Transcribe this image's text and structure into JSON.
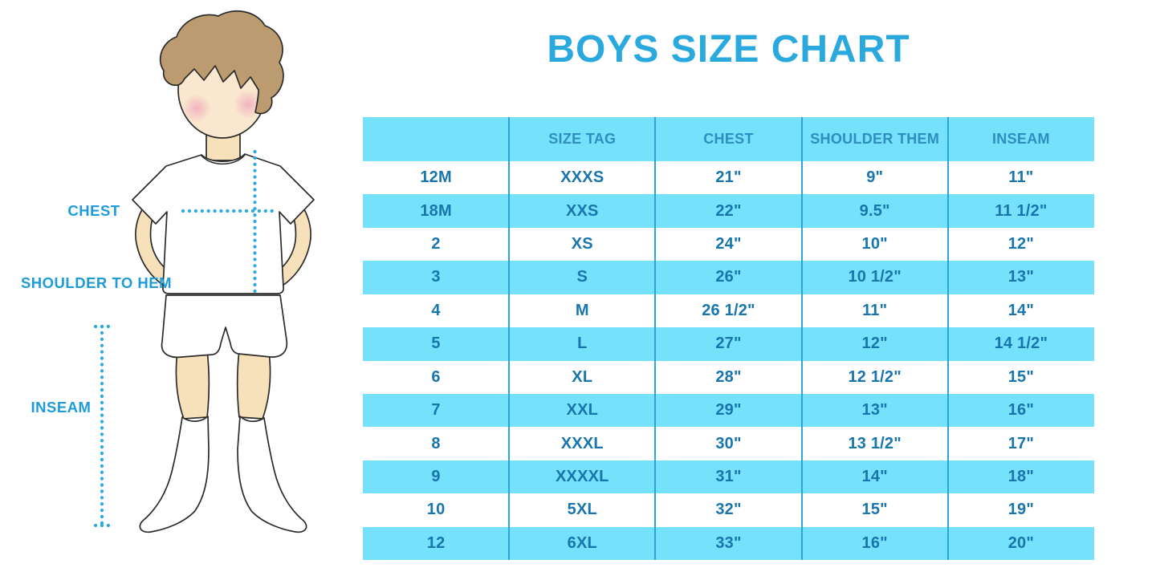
{
  "title": "BOYS SIZE CHART",
  "figure": {
    "description": "boy in white t-shirt, shorts and knee socks with measurement guides",
    "labels": {
      "chest": "CHEST",
      "shoulder_to_hem": "SHOULDER TO HEM",
      "inseam": "INSEAM"
    }
  },
  "chart_data": {
    "type": "table",
    "title": "BOYS SIZE CHART",
    "columns": [
      "",
      "SIZE TAG",
      "CHEST",
      "SHOULDER THEM",
      "INSEAM"
    ],
    "rows": [
      [
        "12M",
        "XXXS",
        "21\"",
        "9\"",
        "11\""
      ],
      [
        "18M",
        "XXS",
        "22\"",
        "9.5\"",
        "11 1/2\""
      ],
      [
        "2",
        "XS",
        "24\"",
        "10\"",
        "12\""
      ],
      [
        "3",
        "S",
        "26\"",
        "10 1/2\"",
        "13\""
      ],
      [
        "4",
        "M",
        "26 1/2\"",
        "11\"",
        "14\""
      ],
      [
        "5",
        "L",
        "27\"",
        "12\"",
        "14 1/2\""
      ],
      [
        "6",
        "XL",
        "28\"",
        "12 1/2\"",
        "15\""
      ],
      [
        "7",
        "XXL",
        "29\"",
        "13\"",
        "16\""
      ],
      [
        "8",
        "XXXL",
        "30\"",
        "13 1/2\"",
        "17\""
      ],
      [
        "9",
        "XXXXL",
        "31\"",
        "14\"",
        "18\""
      ],
      [
        "10",
        "5XL",
        "32\"",
        "15\"",
        "19\""
      ],
      [
        "12",
        "6XL",
        "33\"",
        "16\"",
        "20\""
      ]
    ],
    "layout": {
      "striped": true,
      "stripe_colors": [
        "#FFFFFF",
        "#76E1FB"
      ],
      "grid": "vertical-lines-only",
      "header_fill": "#76E1FB"
    }
  },
  "colors": {
    "accent_blue": "#2AA9DF",
    "table_fill_blue": "#76E1FB",
    "header_text": "#2E8EC0",
    "cell_text": "#1876AC",
    "grid_line": "#2EA3D8",
    "label_blue": "#1E9CD9",
    "dotted_line": "#29ABE2",
    "skin": "#F7E1BA",
    "face": "#F9E8CF",
    "hair": "#BD9B70",
    "cheek": "#F2A9BC",
    "outline": "#2B2B2B"
  }
}
